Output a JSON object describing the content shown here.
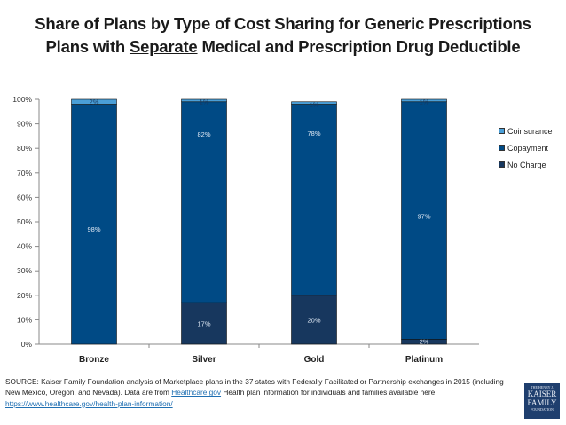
{
  "title_line1": "Share of Plans by Type of Cost Sharing for Generic Prescriptions",
  "title_line2_pre": "Plans with ",
  "title_line2_underlined": "Separate",
  "title_line2_post": " Medical and Prescription Drug Deductible",
  "chart_data": {
    "type": "bar",
    "stacked": true,
    "title": "Share of Plans by Type of Cost Sharing for Generic Prescriptions — Plans with Separate Medical and Prescription Drug Deductible",
    "xlabel": "",
    "ylabel": "",
    "ylim": [
      0,
      100
    ],
    "yticks": [
      "0%",
      "10%",
      "20%",
      "30%",
      "40%",
      "50%",
      "60%",
      "70%",
      "80%",
      "90%",
      "100%"
    ],
    "categories": [
      "Bronze",
      "Silver",
      "Gold",
      "Platinum"
    ],
    "series": [
      {
        "name": "No Charge",
        "color": "#17375e",
        "values": [
          0,
          17,
          20,
          2
        ],
        "labels": [
          "",
          "17%",
          "20%",
          "2%"
        ]
      },
      {
        "name": "Copayment",
        "color": "#004a85",
        "values": [
          98,
          82,
          78,
          97
        ],
        "labels": [
          "98%",
          "82%",
          "78%",
          "97%"
        ]
      },
      {
        "name": "Coinsurance",
        "color": "#4a9fd8",
        "values": [
          2,
          1,
          1,
          1
        ],
        "labels": [
          "2%",
          "1%",
          "1%",
          "1%"
        ]
      }
    ],
    "legend": {
      "position": "right",
      "entries": [
        "Coinsurance",
        "Copayment",
        "No Charge"
      ]
    },
    "grid": false
  },
  "legend": [
    {
      "label": "Coinsurance",
      "color": "#4a9fd8"
    },
    {
      "label": "Copayment",
      "color": "#004a85"
    },
    {
      "label": "No Charge",
      "color": "#17375e"
    }
  ],
  "source": {
    "text1": "SOURCE: Kaiser Family Foundation analysis of Marketplace plans in the 37 states with Federally Facilitated or Partnership exchanges in 2015 (including New Mexico, Oregon, and Nevada). Data are from ",
    "link1": "Healthcare.gov",
    "text2": " Health plan information for individuals and families available here: ",
    "link2": "https://www.healthcare.gov/health-plan-information/"
  },
  "logo": {
    "line1": "THE HENRY J.",
    "line2": "KAISER",
    "line3": "FAMILY",
    "line4": "FOUNDATION"
  }
}
